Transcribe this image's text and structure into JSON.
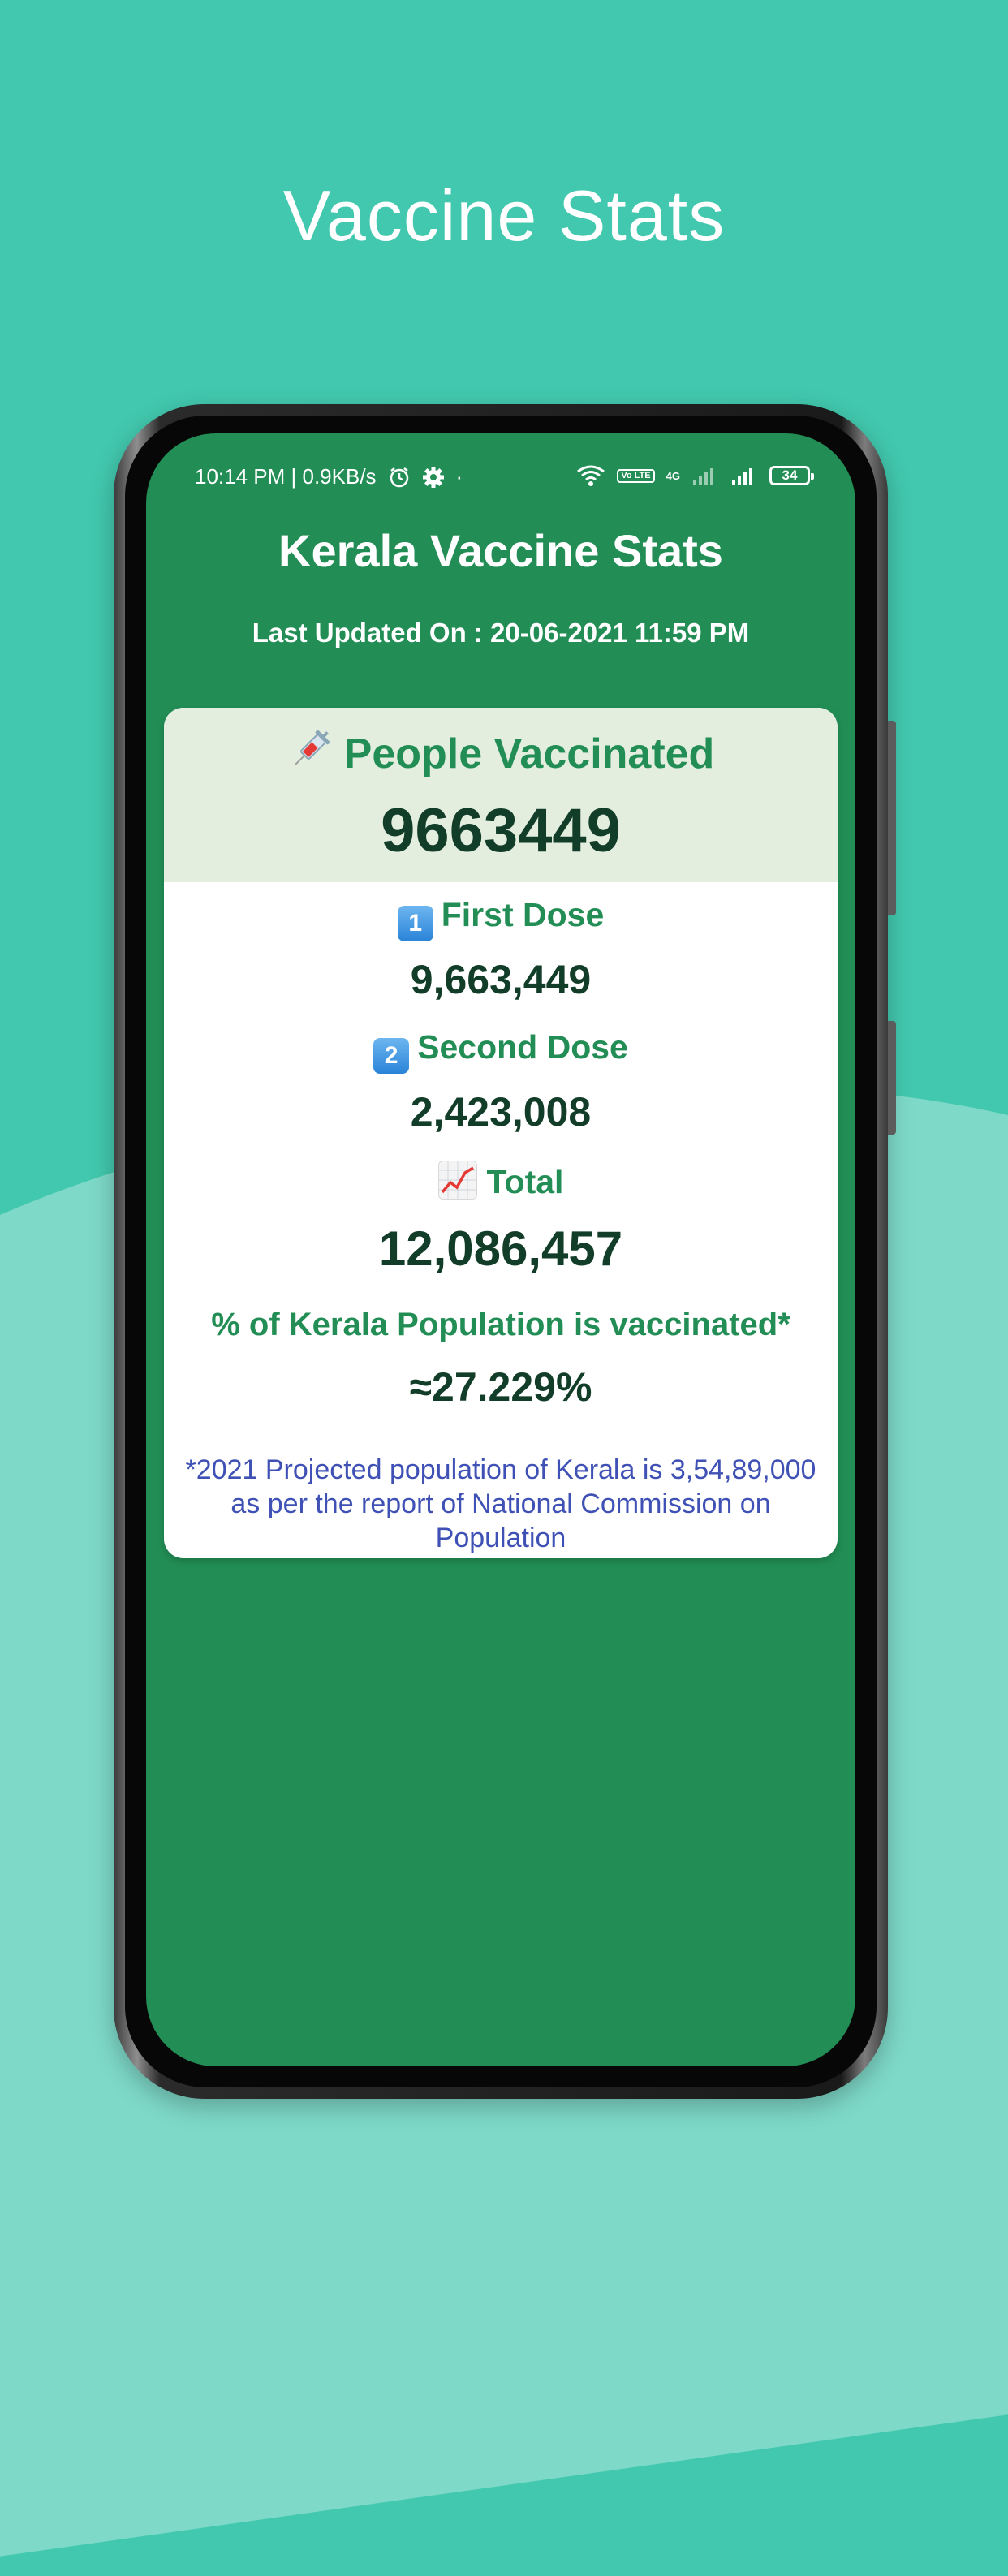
{
  "headline": "Vaccine Stats",
  "status_bar": {
    "time_speed": "10:14 PM | 0.9KB/s",
    "dot": "·",
    "battery": "34",
    "network": "4G",
    "volte": "Vo LTE"
  },
  "app": {
    "title": "Kerala Vaccine Stats",
    "last_updated": "Last Updated On : 20-06-2021 11:59 PM"
  },
  "card": {
    "people_vaccinated_label": "People Vaccinated",
    "people_vaccinated_value": "9663449",
    "first_dose_label": "First Dose",
    "first_dose_value": "9,663,449",
    "second_dose_label": "Second Dose",
    "second_dose_value": "2,423,008",
    "total_label": "Total",
    "total_value": "12,086,457",
    "percent_label": "% of Kerala Population is vaccinated*",
    "percent_value": "≈27.229%",
    "note": "*2021 Projected population of Kerala is 3,54,89,000 as per the report of National Commission on Population",
    "first_dose_badge": "1",
    "second_dose_badge": "2"
  },
  "icons": {
    "syringe": "syringe-icon",
    "first_dose": "keycap-one-icon",
    "second_dose": "keycap-two-icon",
    "total": "chart-increasing-icon",
    "alarm": "alarm-icon",
    "settings": "gear-icon",
    "wifi": "wifi-icon",
    "signal": "signal-icon",
    "battery": "battery-icon"
  },
  "colors": {
    "background": "#42c8ae",
    "blob": "#7ed9c9",
    "screen": "#228e55",
    "card_header": "#e3eedf",
    "label_green": "#228e55",
    "value_dark": "#123d28",
    "note_blue": "#3f51b5"
  }
}
